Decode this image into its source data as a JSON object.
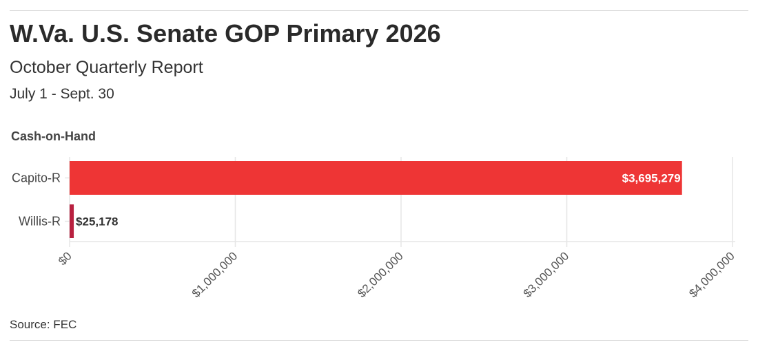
{
  "header": {
    "title": "W.Va. U.S. Senate GOP Primary 2026",
    "subtitle": "October Quarterly Report",
    "period": "July 1 - Sept. 30"
  },
  "footer": {
    "source": "Source: FEC"
  },
  "chart_data": {
    "type": "bar",
    "orientation": "horizontal",
    "title": "Cash-on-Hand",
    "categories": [
      "Capito-R",
      "Willis-R"
    ],
    "values": [
      3695279,
      25178
    ],
    "value_labels": [
      "$3,695,279",
      "$25,178"
    ],
    "colors": [
      "#ee3535",
      "#b8203f"
    ],
    "xlim": [
      0,
      4000000
    ],
    "x_ticks": [
      0,
      1000000,
      2000000,
      3000000,
      4000000
    ],
    "x_tick_labels": [
      "$0",
      "$1,000,000",
      "$2,000,000",
      "$3,000,000",
      "$4,000,000"
    ],
    "grid": true,
    "xlabel": "",
    "ylabel": ""
  }
}
